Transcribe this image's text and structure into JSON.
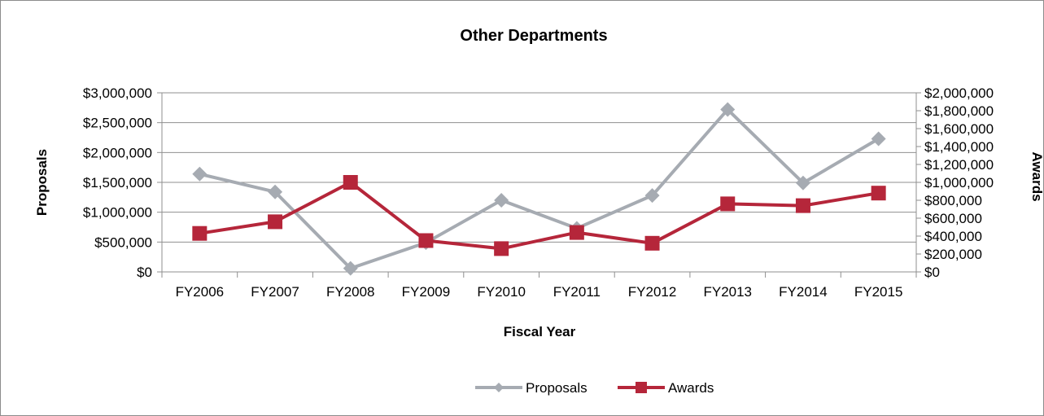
{
  "chart_data": {
    "type": "line",
    "title": "Other Departments",
    "xlabel": "Fiscal Year",
    "ylabel": "Proposals",
    "y2label": "Awards",
    "categories": [
      "FY2006",
      "FY2007",
      "FY2008",
      "FY2009",
      "FY2010",
      "FY2011",
      "FY2012",
      "FY2013",
      "FY2014",
      "FY2015"
    ],
    "ylim": [
      0,
      3000000
    ],
    "y2lim": [
      0,
      2000000
    ],
    "y_ticks": [
      0,
      500000,
      1000000,
      1500000,
      2000000,
      2500000,
      3000000
    ],
    "y_tick_labels": [
      "$0",
      "$500,000",
      "$1,000,000",
      "$1,500,000",
      "$2,000,000",
      "$2,500,000",
      "$3,000,000"
    ],
    "y2_ticks": [
      0,
      200000,
      400000,
      600000,
      800000,
      1000000,
      1200000,
      1400000,
      1600000,
      1800000,
      2000000
    ],
    "y2_tick_labels": [
      "$0",
      "$200,000",
      "$400,000",
      "$600,000",
      "$800,000",
      "$1,000,000",
      "$1,200,000",
      "$1,400,000",
      "$1,600,000",
      "$1,800,000",
      "$2,000,000"
    ],
    "grid": true,
    "legend_position": "bottom",
    "series": [
      {
        "name": "Proposals",
        "axis": "left",
        "color": "#a6abb2",
        "marker": "diamond",
        "values": [
          1640000,
          1340000,
          60000,
          490000,
          1200000,
          730000,
          1280000,
          2720000,
          1490000,
          2230000
        ]
      },
      {
        "name": "Awards",
        "axis": "right",
        "color": "#b5263a",
        "marker": "square",
        "values": [
          430000,
          560000,
          1000000,
          350000,
          260000,
          440000,
          320000,
          760000,
          740000,
          880000
        ]
      }
    ]
  }
}
